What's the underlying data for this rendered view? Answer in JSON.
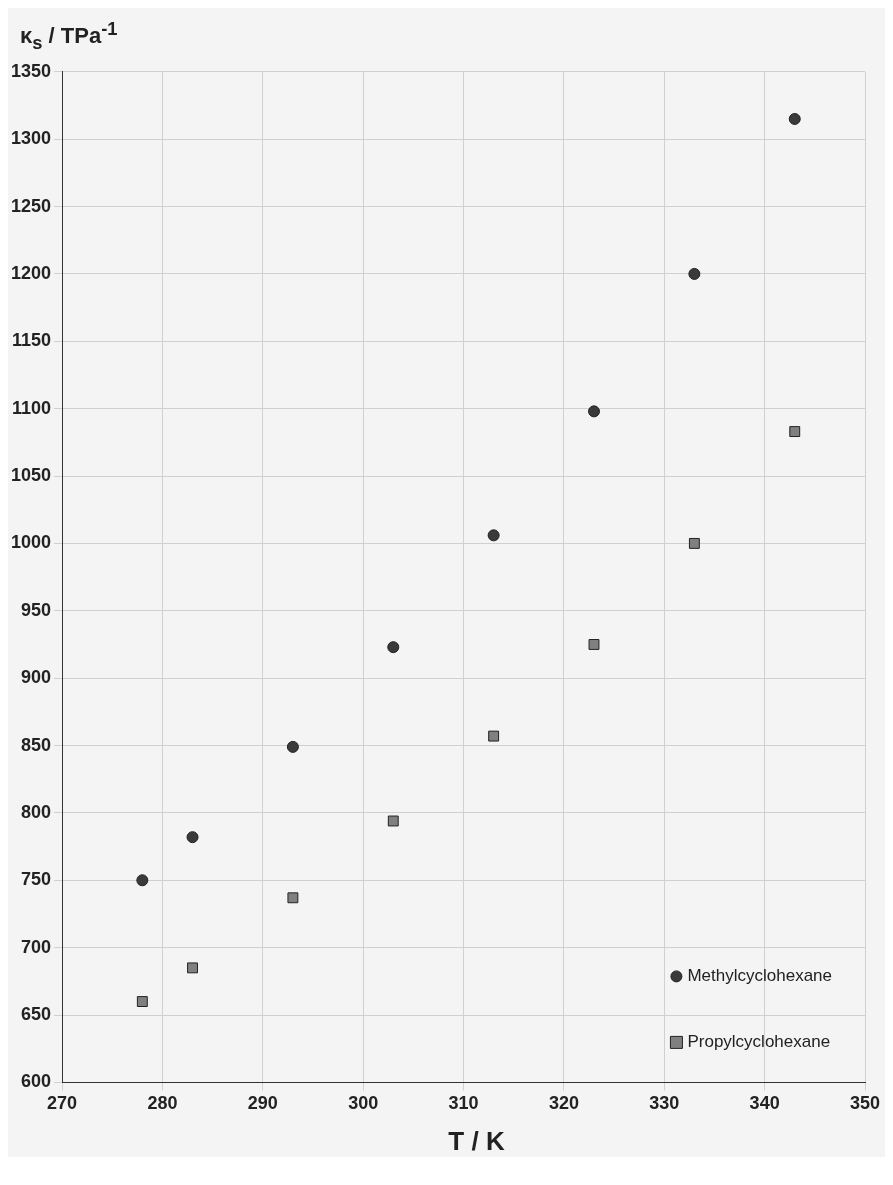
{
  "chart_data": {
    "type": "scatter",
    "xlabel": "T / K",
    "ylabel": "κ$_{s}$ / TPa$^{-1}$",
    "xlim": [
      270,
      350
    ],
    "xticks": [
      270,
      280,
      290,
      300,
      310,
      320,
      330,
      340,
      350
    ],
    "ylim": [
      600,
      1350
    ],
    "yticks": [
      600,
      650,
      700,
      750,
      800,
      850,
      900,
      950,
      1000,
      1050,
      1100,
      1150,
      1200,
      1250,
      1300,
      1350
    ],
    "grid": true,
    "legend": "bottom right",
    "series": [
      {
        "name": "Methylcyclohexane",
        "color": "#3a3a3a",
        "marker": "circle",
        "x": [
          278,
          283,
          293,
          303,
          313,
          323,
          333,
          343
        ],
        "values": [
          750,
          782,
          849,
          923,
          1006,
          1098,
          1200,
          1315
        ]
      },
      {
        "name": "Propylcyclohexane",
        "color": "#808080",
        "marker": "square",
        "x": [
          278,
          283,
          293,
          303,
          313,
          323,
          333,
          343
        ],
        "values": [
          660,
          685,
          737,
          794,
          857,
          925,
          1000,
          1083
        ]
      }
    ]
  }
}
